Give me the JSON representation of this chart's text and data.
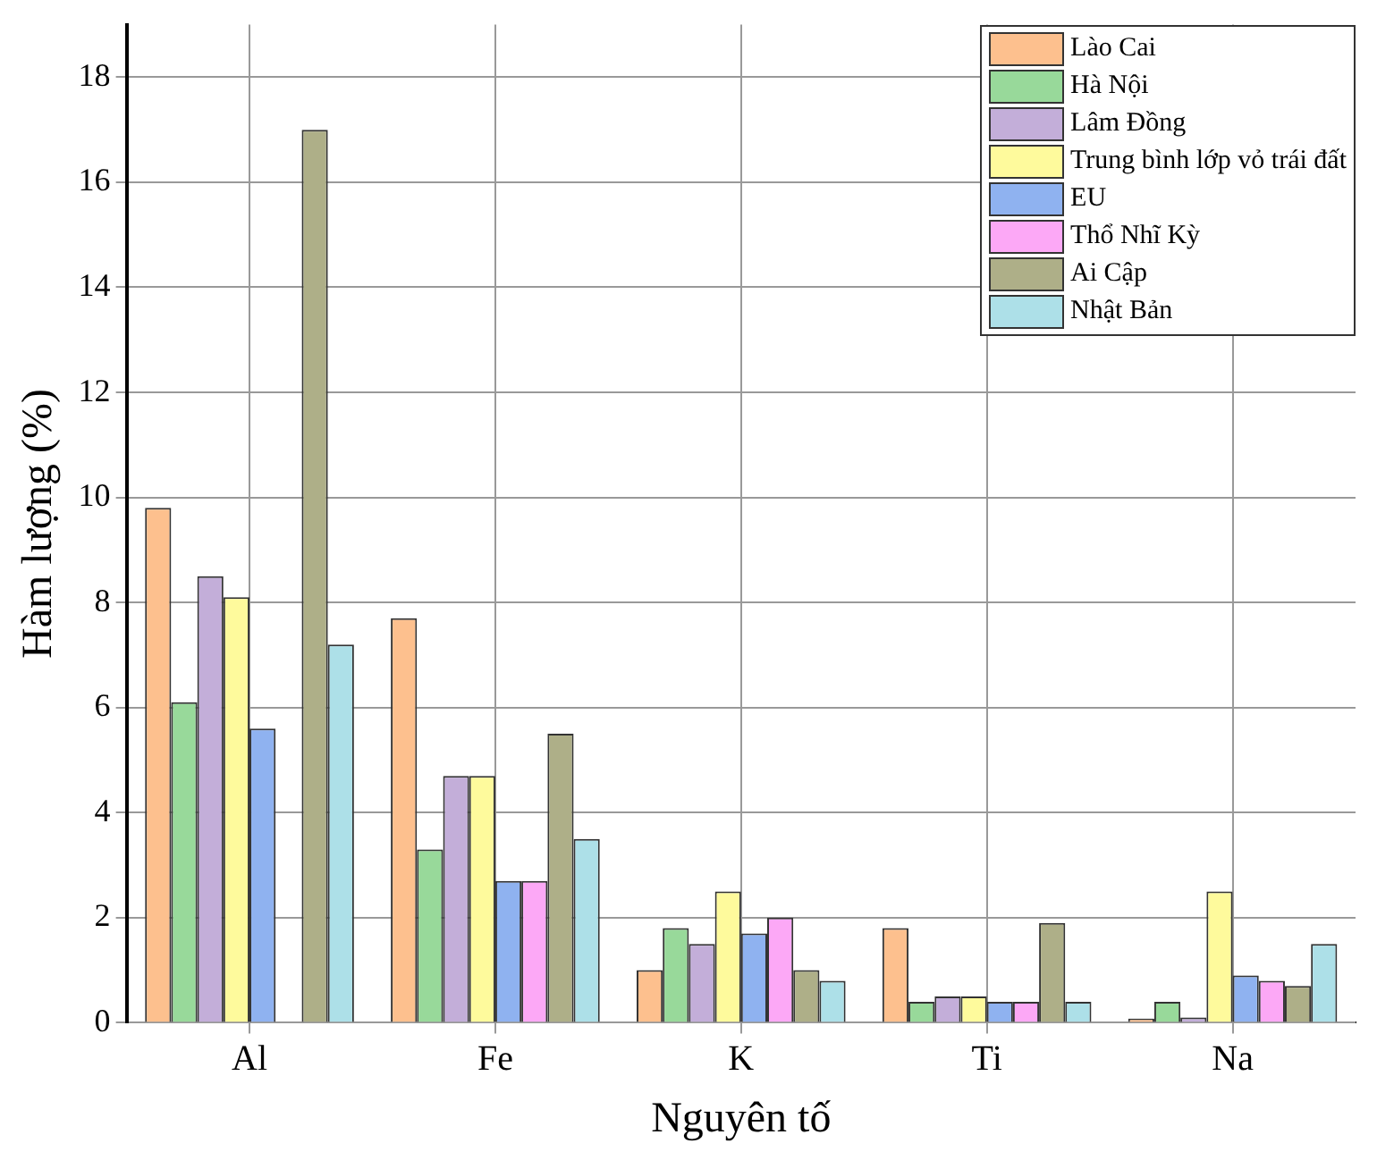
{
  "chart_data": {
    "type": "bar",
    "xlabel": "Nguyên tố",
    "ylabel": "Hàm lượng (%)",
    "categories": [
      "Al",
      "Fe",
      "K",
      "Ti",
      "Na"
    ],
    "series": [
      {
        "name": "Lào Cai",
        "color": "#fdc08e",
        "values": [
          9.8,
          7.7,
          1.0,
          1.8,
          0.08
        ]
      },
      {
        "name": "Hà Nội",
        "color": "#98d99a",
        "values": [
          6.1,
          3.3,
          1.8,
          0.4,
          0.4
        ]
      },
      {
        "name": "Lâm Đồng",
        "color": "#c3aed9",
        "values": [
          8.5,
          4.7,
          1.5,
          0.5,
          0.1
        ]
      },
      {
        "name": "Trung bình lớp vỏ trái đất",
        "color": "#fefa9c",
        "values": [
          8.1,
          4.7,
          2.5,
          0.5,
          2.5
        ]
      },
      {
        "name": "EU",
        "color": "#8fb2f0",
        "values": [
          5.6,
          2.7,
          1.7,
          0.4,
          0.9
        ]
      },
      {
        "name": "Thổ Nhĩ Kỳ",
        "color": "#fca8f6",
        "values": [
          null,
          2.7,
          2.0,
          0.4,
          0.8
        ]
      },
      {
        "name": "Ai Cập",
        "color": "#aeaf88",
        "values": [
          17,
          5.5,
          1.0,
          1.9,
          0.7
        ]
      },
      {
        "name": "Nhật Bản",
        "color": "#ade0e8",
        "values": [
          7.2,
          3.5,
          0.8,
          0.4,
          1.5
        ]
      }
    ],
    "ylim": [
      0,
      19
    ],
    "yticks": [
      0,
      2,
      4,
      6,
      8,
      10,
      12,
      14,
      16,
      18
    ],
    "grid": true,
    "legend": "top right"
  }
}
